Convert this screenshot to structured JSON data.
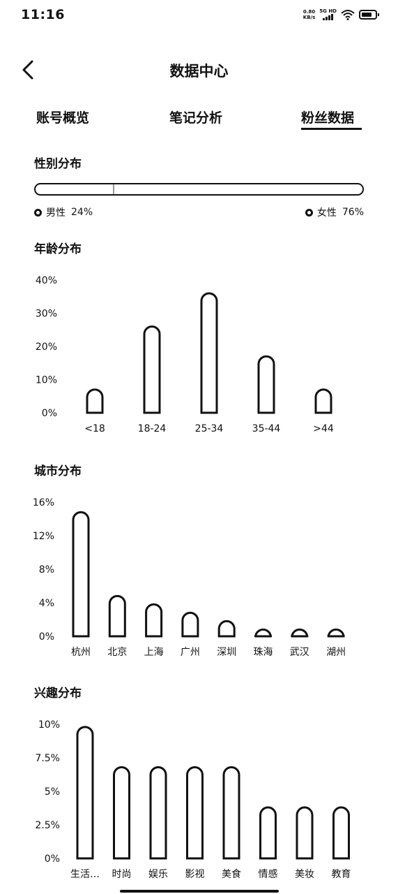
{
  "status_bar": {
    "time": "11:16",
    "net_speed_value": "0.80",
    "net_speed_unit": "KB/s",
    "signal_label": "5G HD",
    "icons": [
      "signal-icon",
      "wifi-icon",
      "battery-icon"
    ]
  },
  "header": {
    "title": "数据中心",
    "back_icon": "chevron-left-icon"
  },
  "tabs": [
    {
      "label": "账号概览",
      "active": false
    },
    {
      "label": "笔记分析",
      "active": false
    },
    {
      "label": "粉丝数据",
      "active": true
    }
  ],
  "gender": {
    "title": "性别分布",
    "male_label": "男性",
    "male_value": "24%",
    "male_fraction": 0.24,
    "female_label": "女性",
    "female_value": "76%",
    "female_fraction": 0.76
  },
  "chart_data": [
    {
      "id": "age",
      "type": "bar",
      "title": "年龄分布",
      "categories": [
        "<18",
        "18-24",
        "25-34",
        "35-44",
        ">44"
      ],
      "values": [
        7,
        26,
        36,
        17,
        7
      ],
      "yticks": [
        "40%",
        "30%",
        "20%",
        "10%",
        "0%"
      ],
      "ylim": [
        0,
        40
      ],
      "grid": false,
      "legend": "none"
    },
    {
      "id": "city",
      "type": "bar",
      "title": "城市分布",
      "categories": [
        "杭州",
        "北京",
        "上海",
        "广州",
        "深圳",
        "珠海",
        "武汉",
        "湖州"
      ],
      "values": [
        14.8,
        4.8,
        3.8,
        2.8,
        1.8,
        0.8,
        0.8,
        0.8
      ],
      "yticks": [
        "16%",
        "12%",
        "8%",
        "4%",
        "0%"
      ],
      "ylim": [
        0,
        16
      ],
      "grid": false,
      "legend": "none"
    },
    {
      "id": "interest",
      "type": "bar",
      "title": "兴趣分布",
      "categories": [
        "生活…",
        "时尚",
        "娱乐",
        "影视",
        "美食",
        "情感",
        "美妆",
        "教育"
      ],
      "values": [
        9.8,
        6.8,
        6.8,
        6.8,
        6.8,
        3.8,
        3.8,
        3.8
      ],
      "yticks": [
        "10%",
        "7.5%",
        "5%",
        "2.5%",
        "0%"
      ],
      "ylim": [
        0,
        10
      ],
      "grid": false,
      "legend": "none"
    }
  ]
}
